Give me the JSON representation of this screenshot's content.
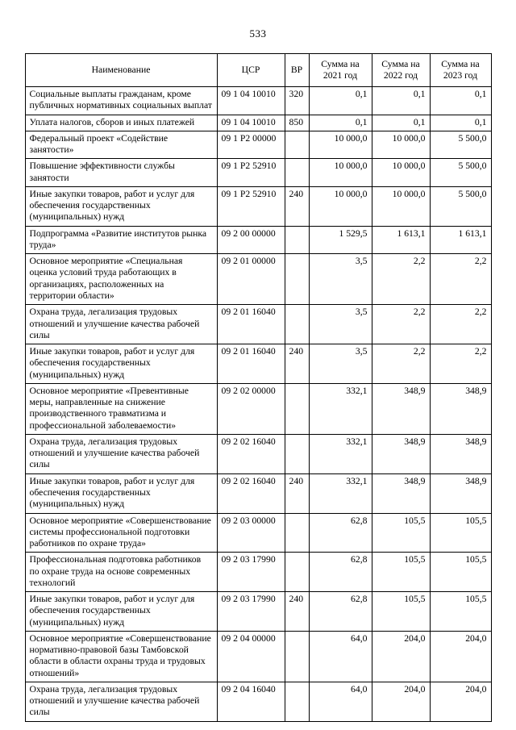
{
  "page": {
    "number": "533"
  },
  "table": {
    "headers": [
      "Наименование",
      "ЦСР",
      "ВР",
      "Сумма на 2021 год",
      "Сумма на 2022 год",
      "Сумма на 2023 год"
    ],
    "rows": [
      {
        "name": "Социальные выплаты гражданам, кроме публичных нормативных социальных выплат",
        "csr": "09 1 04 10010",
        "vr": "320",
        "y2021": "0,1",
        "y2022": "0,1",
        "y2023": "0,1"
      },
      {
        "name": "Уплата налогов, сборов и иных платежей",
        "csr": "09 1 04 10010",
        "vr": "850",
        "y2021": "0,1",
        "y2022": "0,1",
        "y2023": "0,1"
      },
      {
        "name": "Федеральный проект «Содействие занятости»",
        "csr": "09 1 P2 00000",
        "vr": "",
        "y2021": "10 000,0",
        "y2022": "10 000,0",
        "y2023": "5 500,0"
      },
      {
        "name": "Повышение эффективности службы занятости",
        "csr": "09 1 P2 52910",
        "vr": "",
        "y2021": "10 000,0",
        "y2022": "10 000,0",
        "y2023": "5 500,0"
      },
      {
        "name": "Иные закупки товаров, работ и услуг для обеспечения государственных (муниципальных) нужд",
        "csr": "09 1 P2 52910",
        "vr": "240",
        "y2021": "10 000,0",
        "y2022": "10 000,0",
        "y2023": "5 500,0"
      },
      {
        "name": "Подпрограмма «Развитие институтов рынка труда»",
        "csr": "09 2 00 00000",
        "vr": "",
        "y2021": "1 529,5",
        "y2022": "1 613,1",
        "y2023": "1 613,1"
      },
      {
        "name": "Основное мероприятие «Специальная оценка условий труда работающих в организациях, расположенных на территории области»",
        "csr": "09 2 01 00000",
        "vr": "",
        "y2021": "3,5",
        "y2022": "2,2",
        "y2023": "2,2"
      },
      {
        "name": "Охрана труда, легализация трудовых отношений и улучшение качества рабочей силы",
        "csr": "09 2 01 16040",
        "vr": "",
        "y2021": "3,5",
        "y2022": "2,2",
        "y2023": "2,2"
      },
      {
        "name": "Иные закупки товаров, работ и услуг для обеспечения государственных (муниципальных) нужд",
        "csr": "09 2 01 16040",
        "vr": "240",
        "y2021": "3,5",
        "y2022": "2,2",
        "y2023": "2,2"
      },
      {
        "name": "Основное мероприятие «Превентивные меры, направленные на снижение производственного травматизма и профессиональной заболеваемости»",
        "csr": "09 2 02 00000",
        "vr": "",
        "y2021": "332,1",
        "y2022": "348,9",
        "y2023": "348,9"
      },
      {
        "name": "Охрана труда, легализация трудовых отношений и улучшение качества рабочей силы",
        "csr": "09 2 02 16040",
        "vr": "",
        "y2021": "332,1",
        "y2022": "348,9",
        "y2023": "348,9"
      },
      {
        "name": "Иные закупки товаров, работ и услуг для обеспечения государственных (муниципальных) нужд",
        "csr": "09 2 02 16040",
        "vr": "240",
        "y2021": "332,1",
        "y2022": "348,9",
        "y2023": "348,9"
      },
      {
        "name": "Основное мероприятие «Совершенствование системы профессиональной подготовки работников по охране труда»",
        "csr": "09 2 03 00000",
        "vr": "",
        "y2021": "62,8",
        "y2022": "105,5",
        "y2023": "105,5"
      },
      {
        "name": "Профессиональная подготовка работников по охране труда на основе современных технологий",
        "csr": "09 2 03 17990",
        "vr": "",
        "y2021": "62,8",
        "y2022": "105,5",
        "y2023": "105,5"
      },
      {
        "name": "Иные закупки товаров, работ и услуг для обеспечения государственных (муниципальных) нужд",
        "csr": "09 2 03 17990",
        "vr": "240",
        "y2021": "62,8",
        "y2022": "105,5",
        "y2023": "105,5"
      },
      {
        "name": "Основное мероприятие «Совершенствование нормативно-правовой базы Тамбовской области в области охраны труда и трудовых отношений»",
        "csr": "09 2 04 00000",
        "vr": "",
        "y2021": "64,0",
        "y2022": "204,0",
        "y2023": "204,0"
      },
      {
        "name": "Охрана труда, легализация трудовых отношений и улучшение качества рабочей силы",
        "csr": "09 2 04 16040",
        "vr": "",
        "y2021": "64,0",
        "y2022": "204,0",
        "y2023": "204,0"
      }
    ]
  }
}
